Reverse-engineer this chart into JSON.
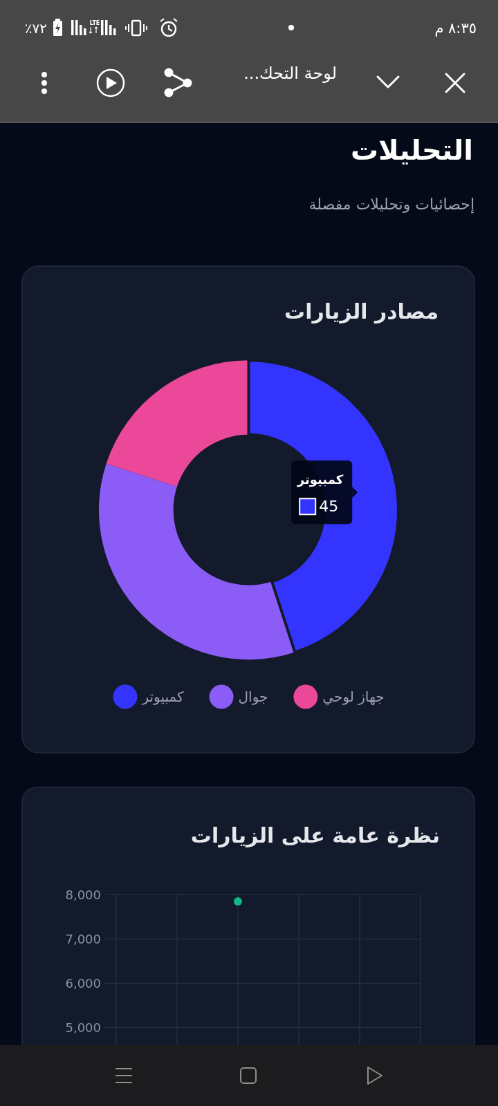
{
  "chart_data": [
    {
      "type": "donut",
      "title": "مصادر الزيارات",
      "categories": [
        "كمبيوتر",
        "جوال",
        "جهاز لوحي"
      ],
      "values": [
        45,
        35,
        20
      ],
      "colors": [
        "#3434ff",
        "#8b5cf6",
        "#ec4899"
      ],
      "value_labels": [
        "45",
        null,
        null
      ],
      "legend": "bottom",
      "annotations": [
        "٨:٣٥ م",
        "LTE",
        "٧٢٪",
        "لوحة التحك...",
        "التحليلات",
        "إحصائيات وتحليلات مفصلة"
      ]
    },
    {
      "type": "scatter",
      "title": "نظرة عامة على الزيارات",
      "categories": [
        null,
        null,
        null,
        null,
        null,
        null
      ],
      "ylim": [
        4600,
        8000
      ],
      "yticks": [
        {
          "value": 5000,
          "label": "5,000"
        },
        {
          "value": 6000,
          "label": "6,000"
        },
        {
          "value": 7000,
          "label": "7,000"
        },
        {
          "value": 8000,
          "label": "8,000"
        }
      ],
      "grid": true,
      "marker": "circle",
      "series": [
        {
          "color": "#10b981",
          "values": [
            null,
            null,
            7850,
            null,
            null,
            null
          ]
        }
      ]
    }
  ]
}
